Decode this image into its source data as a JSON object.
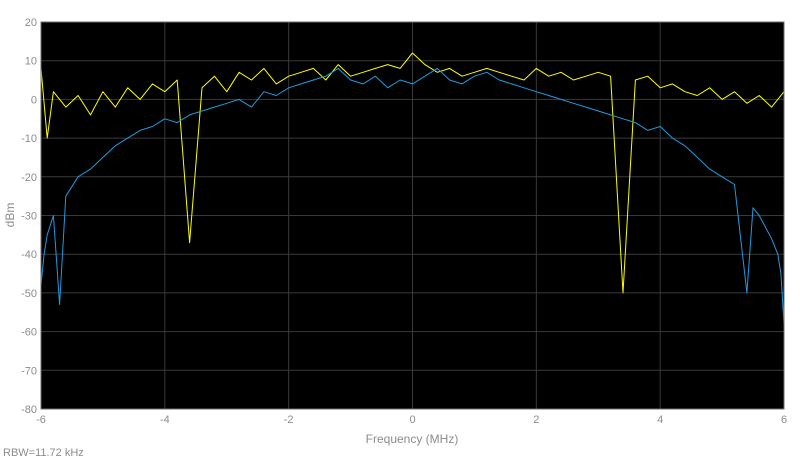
{
  "chart_data": {
    "type": "line",
    "title": "",
    "xlabel": "Frequency (MHz)",
    "ylabel": "dBm",
    "xlim": [
      -6,
      6
    ],
    "ylim": [
      -80,
      20
    ],
    "xticks": [
      -6,
      -4,
      -2,
      0,
      2,
      4,
      6
    ],
    "yticks": [
      20,
      10,
      0,
      -10,
      -20,
      -30,
      -40,
      -50,
      -60,
      -70,
      -80
    ],
    "grid": true,
    "background": "#000000",
    "series": [
      {
        "color": "#ffff00",
        "x": [
          -6.0,
          -5.9,
          -5.8,
          -5.6,
          -5.4,
          -5.2,
          -5.0,
          -4.8,
          -4.6,
          -4.4,
          -4.2,
          -4.0,
          -3.8,
          -3.6,
          -3.4,
          -3.2,
          -3.0,
          -2.8,
          -2.6,
          -2.4,
          -2.2,
          -2.0,
          -1.8,
          -1.6,
          -1.4,
          -1.2,
          -1.0,
          -0.8,
          -0.6,
          -0.4,
          -0.2,
          0.0,
          0.2,
          0.4,
          0.6,
          0.8,
          1.0,
          1.2,
          1.4,
          1.6,
          1.8,
          2.0,
          2.2,
          2.4,
          2.6,
          2.8,
          3.0,
          3.2,
          3.4,
          3.6,
          3.8,
          4.0,
          4.2,
          4.4,
          4.6,
          4.8,
          5.0,
          5.2,
          5.4,
          5.6,
          5.8,
          6.0
        ],
        "y": [
          8,
          -10,
          2,
          -2,
          1,
          -4,
          2,
          -2,
          3,
          0,
          4,
          2,
          5,
          -37,
          3,
          6,
          2,
          7,
          5,
          8,
          4,
          6,
          7,
          8,
          5,
          9,
          6,
          7,
          8,
          9,
          8,
          12,
          9,
          7,
          8,
          6,
          7,
          8,
          7,
          6,
          5,
          8,
          6,
          7,
          5,
          6,
          7,
          6,
          -50,
          5,
          6,
          3,
          4,
          2,
          1,
          3,
          0,
          2,
          -1,
          1,
          -2,
          2
        ]
      },
      {
        "color": "#1e9be0",
        "x": [
          -6.0,
          -5.95,
          -5.9,
          -5.8,
          -5.7,
          -5.6,
          -5.4,
          -5.2,
          -5.0,
          -4.8,
          -4.6,
          -4.4,
          -4.2,
          -4.0,
          -3.8,
          -3.6,
          -3.4,
          -3.2,
          -3.0,
          -2.8,
          -2.6,
          -2.4,
          -2.2,
          -2.0,
          -1.8,
          -1.6,
          -1.4,
          -1.2,
          -1.0,
          -0.8,
          -0.6,
          -0.4,
          -0.2,
          0.0,
          0.2,
          0.4,
          0.6,
          0.8,
          1.0,
          1.2,
          1.4,
          1.6,
          1.8,
          2.0,
          2.2,
          2.4,
          2.6,
          2.8,
          3.0,
          3.2,
          3.4,
          3.6,
          3.8,
          4.0,
          4.2,
          4.4,
          4.6,
          4.8,
          5.0,
          5.2,
          5.4,
          5.5,
          5.6,
          5.7,
          5.8,
          5.9,
          5.95,
          6.0
        ],
        "y": [
          -48,
          -40,
          -35,
          -30,
          -53,
          -25,
          -20,
          -18,
          -15,
          -12,
          -10,
          -8,
          -7,
          -5,
          -6,
          -4,
          -3,
          -2,
          -1,
          0,
          -2,
          2,
          1,
          3,
          4,
          5,
          6,
          8,
          5,
          4,
          6,
          3,
          5,
          4,
          6,
          8,
          5,
          4,
          6,
          7,
          5,
          4,
          3,
          2,
          1,
          0,
          -1,
          -2,
          -3,
          -4,
          -5,
          -6,
          -8,
          -7,
          -10,
          -12,
          -15,
          -18,
          -20,
          -22,
          -50,
          -28,
          -30,
          -33,
          -36,
          -40,
          -45,
          -58
        ]
      }
    ]
  },
  "footer": {
    "rbw": "RBW=11.72 kHz"
  }
}
